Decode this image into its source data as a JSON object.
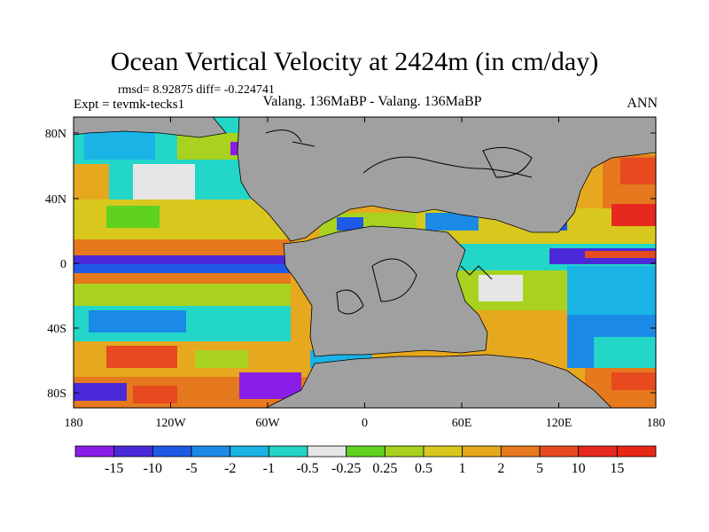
{
  "title": "Ocean Vertical Velocity at 2424m (in cm/day)",
  "stats": "rmsd= 8.92875 diff= -0.224741",
  "experiment": "Expt = tevmk-tecks1",
  "comparison": "Valang. 136MaBP - Valang. 136MaBP",
  "season": "ANN",
  "colors": {
    "land": "#a0a0a0",
    "coast": "#000000",
    "palette": [
      "#8a1ee6",
      "#4a2ad8",
      "#1e5ae6",
      "#1a8ae6",
      "#1ab4e6",
      "#22d6c8",
      "#e6e6e6",
      "#5ed21e",
      "#a8d21e",
      "#d8c81e",
      "#e6a81e",
      "#e6781e",
      "#e64a1e",
      "#e6281e"
    ]
  },
  "lat_labels": [
    "80N",
    "40N",
    "0",
    "40S",
    "80S"
  ],
  "lon_labels": [
    "180",
    "120W",
    "60W",
    "0",
    "60E",
    "120E",
    "180"
  ],
  "colorbar": {
    "levels": [
      "-15",
      "-10",
      "-5",
      "-2",
      "-1",
      "-0.5",
      "-0.25",
      "0.25",
      "0.5",
      "1",
      "2",
      "5",
      "10",
      "15"
    ]
  }
}
